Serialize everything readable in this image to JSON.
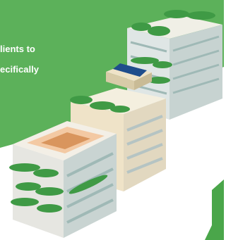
{
  "text": {
    "line1": "lients to",
    "line2": "ecifically"
  }
}
